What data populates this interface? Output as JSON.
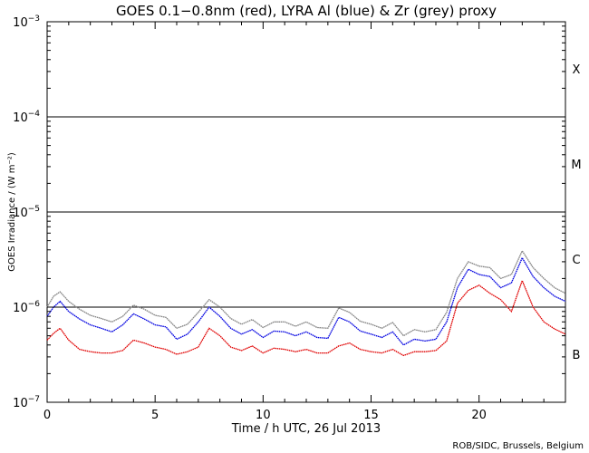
{
  "chart_data": {
    "type": "line",
    "title": "GOES 0.1−0.8nm (red), LYRA Al (blue) & Zr (grey) proxy",
    "xlabel": "Time / h UTC, 26 Jul 2013",
    "ylabel": "GOES Irradiance / (W m⁻²)",
    "xlim": [
      0,
      24
    ],
    "ylim": [
      1e-07,
      0.001
    ],
    "yscale": "log",
    "x_ticks": [
      0,
      5,
      10,
      15,
      20
    ],
    "x_tick_labels": [
      "0",
      "5",
      "10",
      "15",
      "20"
    ],
    "y_ticks": [
      {
        "value": 1e-07,
        "base": "10",
        "exp": "−7"
      },
      {
        "value": 1e-06,
        "base": "10",
        "exp": "−6"
      },
      {
        "value": 1e-05,
        "base": "10",
        "exp": "−5"
      },
      {
        "value": 0.0001,
        "base": "10",
        "exp": "−4"
      },
      {
        "value": 0.001,
        "base": "10",
        "exp": "−3"
      }
    ],
    "flare_class_lines": [
      1e-06,
      1e-05,
      0.0001
    ],
    "flare_classes": [
      {
        "label": "X",
        "value": 0.00032
      },
      {
        "label": "M",
        "value": 3.2e-05
      },
      {
        "label": "C",
        "value": 3.2e-06
      },
      {
        "label": "B",
        "value": 3.2e-07
      }
    ],
    "series": [
      {
        "name": "GOES 0.1-0.8nm",
        "color": "#e00000",
        "x": [
          0,
          0.3,
          0.6,
          1.0,
          1.5,
          2.0,
          2.5,
          3.0,
          3.5,
          4.0,
          4.5,
          5.0,
          5.5,
          6.0,
          6.5,
          7.0,
          7.5,
          8.0,
          8.5,
          9.0,
          9.5,
          10.0,
          10.5,
          11.0,
          11.5,
          12.0,
          12.5,
          13.0,
          13.5,
          14.0,
          14.5,
          15.0,
          15.5,
          16.0,
          16.5,
          17.0,
          17.5,
          18.0,
          18.5,
          19.0,
          19.5,
          20.0,
          20.5,
          21.0,
          21.5,
          22.0,
          22.5,
          23.0,
          23.5,
          24.0
        ],
        "y": [
          4.5e-07,
          5.3e-07,
          6e-07,
          4.5e-07,
          3.6e-07,
          3.4e-07,
          3.3e-07,
          3.3e-07,
          3.5e-07,
          4.5e-07,
          4.2e-07,
          3.8e-07,
          3.6e-07,
          3.2e-07,
          3.4e-07,
          3.8e-07,
          6e-07,
          5e-07,
          3.8e-07,
          3.5e-07,
          3.9e-07,
          3.3e-07,
          3.7e-07,
          3.6e-07,
          3.4e-07,
          3.6e-07,
          3.3e-07,
          3.3e-07,
          3.9e-07,
          4.2e-07,
          3.6e-07,
          3.4e-07,
          3.3e-07,
          3.6e-07,
          3.1e-07,
          3.4e-07,
          3.4e-07,
          3.5e-07,
          4.4e-07,
          1.1e-06,
          1.5e-06,
          1.7e-06,
          1.4e-06,
          1.2e-06,
          9e-07,
          1.9e-06,
          1e-06,
          7e-07,
          5.9e-07,
          5.2e-07
        ]
      },
      {
        "name": "LYRA Al proxy",
        "color": "#0000e0",
        "x": [
          0,
          0.3,
          0.6,
          1.0,
          1.5,
          2.0,
          2.5,
          3.0,
          3.5,
          4.0,
          4.5,
          5.0,
          5.5,
          6.0,
          6.5,
          7.0,
          7.5,
          8.0,
          8.5,
          9.0,
          9.5,
          10.0,
          10.5,
          11.0,
          11.5,
          12.0,
          12.5,
          13.0,
          13.5,
          14.0,
          14.5,
          15.0,
          15.5,
          16.0,
          16.5,
          17.0,
          17.5,
          18.0,
          18.5,
          19.0,
          19.5,
          20.0,
          20.5,
          21.0,
          21.5,
          22.0,
          22.5,
          23.0,
          23.5,
          24.0
        ],
        "y": [
          8e-07,
          1e-06,
          1.15e-06,
          9e-07,
          7.5e-07,
          6.5e-07,
          6e-07,
          5.5e-07,
          6.5e-07,
          8.5e-07,
          7.5e-07,
          6.5e-07,
          6.2e-07,
          4.6e-07,
          5.2e-07,
          7e-07,
          1e-06,
          8e-07,
          6e-07,
          5.2e-07,
          5.8e-07,
          4.8e-07,
          5.6e-07,
          5.5e-07,
          5e-07,
          5.5e-07,
          4.8e-07,
          4.7e-07,
          7.8e-07,
          7e-07,
          5.6e-07,
          5.2e-07,
          4.8e-07,
          5.5e-07,
          4e-07,
          4.6e-07,
          4.4e-07,
          4.6e-07,
          7e-07,
          1.6e-06,
          2.5e-06,
          2.2e-06,
          2.1e-06,
          1.6e-06,
          1.8e-06,
          3.3e-06,
          2.1e-06,
          1.6e-06,
          1.3e-06,
          1.15e-06
        ]
      },
      {
        "name": "LYRA Zr proxy",
        "color": "#808080",
        "x": [
          0,
          0.3,
          0.6,
          1.0,
          1.5,
          2.0,
          2.5,
          3.0,
          3.5,
          4.0,
          4.5,
          5.0,
          5.5,
          6.0,
          6.5,
          7.0,
          7.5,
          8.0,
          8.5,
          9.0,
          9.5,
          10.0,
          10.5,
          11.0,
          11.5,
          12.0,
          12.5,
          13.0,
          13.5,
          14.0,
          14.5,
          15.0,
          15.5,
          16.0,
          16.5,
          17.0,
          17.5,
          18.0,
          18.5,
          19.0,
          19.5,
          20.0,
          20.5,
          21.0,
          21.5,
          22.0,
          22.5,
          23.0,
          23.5,
          24.0
        ],
        "y": [
          1e-06,
          1.3e-06,
          1.45e-06,
          1.15e-06,
          9.5e-07,
          8.2e-07,
          7.6e-07,
          7e-07,
          8e-07,
          1.05e-06,
          9.5e-07,
          8.2e-07,
          7.8e-07,
          6e-07,
          6.6e-07,
          8.8e-07,
          1.2e-06,
          1e-06,
          7.6e-07,
          6.6e-07,
          7.4e-07,
          6.1e-07,
          7e-07,
          7e-07,
          6.3e-07,
          7e-07,
          6.1e-07,
          6e-07,
          9.8e-07,
          8.8e-07,
          7.1e-07,
          6.6e-07,
          6e-07,
          6.9e-07,
          5e-07,
          5.8e-07,
          5.5e-07,
          5.8e-07,
          8.8e-07,
          2e-06,
          3e-06,
          2.7e-06,
          2.6e-06,
          2e-06,
          2.2e-06,
          3.9e-06,
          2.6e-06,
          2e-06,
          1.6e-06,
          1.4e-06
        ]
      }
    ],
    "credit": "ROB/SIDC, Brussels, Belgium"
  }
}
